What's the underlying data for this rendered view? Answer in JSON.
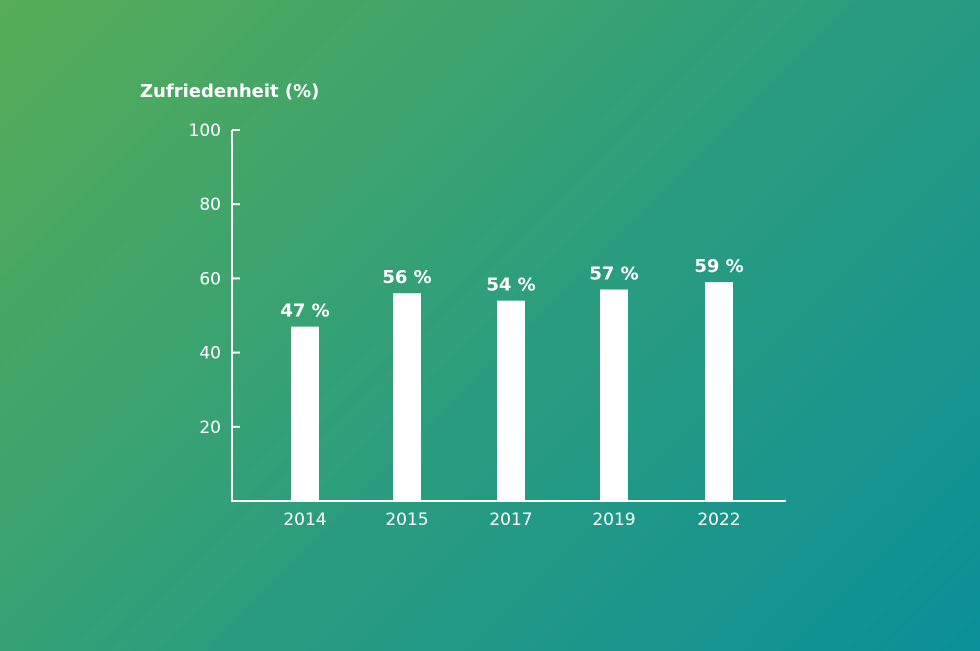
{
  "chart_data": {
    "type": "bar",
    "title": "",
    "xlabel": "",
    "ylabel": "Zufriedenheit (%)",
    "categories": [
      "2014",
      "2015",
      "2017",
      "2019",
      "2022"
    ],
    "values": [
      47,
      56,
      54,
      57,
      59
    ],
    "data_labels": [
      "47 %",
      "56 %",
      "54 %",
      "57 %",
      "59 %"
    ],
    "ylim": [
      0,
      100
    ],
    "yticks": [
      20,
      40,
      60,
      80,
      100
    ],
    "ytick_labels": [
      "20",
      "40",
      "60",
      "80",
      "100"
    ],
    "grid": false,
    "bar_color": "#ffffff"
  }
}
